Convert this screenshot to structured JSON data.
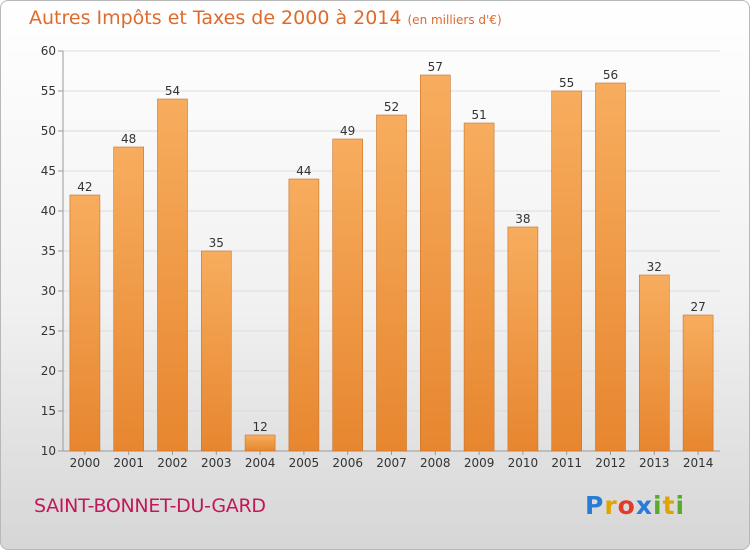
{
  "title": "Autres Impôts et Taxes de 2000 à 2014",
  "unit": "(en milliers d'€)",
  "commune": "SAINT-BONNET-DU-GARD",
  "logo": {
    "letters": [
      "P",
      "r",
      "o",
      "x",
      "i",
      "t",
      "i"
    ],
    "colors": [
      "#2a7bd8",
      "#e0a400",
      "#e33b2b",
      "#2a7bd8",
      "#5aaa2e",
      "#e0a400",
      "#5aaa2e"
    ]
  },
  "colors": {
    "bar_light": "#f7ad5e",
    "bar_dark": "#e7862f",
    "bar_shadow": "#c9732b",
    "grid": "#dcdcdc",
    "axis": "#9a9a9a",
    "text": "#333333",
    "title": "#de6a2c",
    "commune": "#c2185b"
  },
  "chart_data": {
    "type": "bar",
    "categories": [
      "2000",
      "2001",
      "2002",
      "2003",
      "2004",
      "2005",
      "2006",
      "2007",
      "2008",
      "2009",
      "2010",
      "2011",
      "2012",
      "2013",
      "2014"
    ],
    "values": [
      42,
      48,
      54,
      35,
      12,
      44,
      49,
      52,
      57,
      51,
      38,
      55,
      56,
      32,
      27
    ],
    "ylim": [
      10,
      60
    ],
    "yticks": [
      10,
      15,
      20,
      25,
      30,
      35,
      40,
      45,
      50,
      55,
      60
    ],
    "grid": true,
    "title": "Autres Impôts et Taxes de 2000 à 2014",
    "xlabel": "",
    "ylabel": "(en milliers d'€)"
  }
}
